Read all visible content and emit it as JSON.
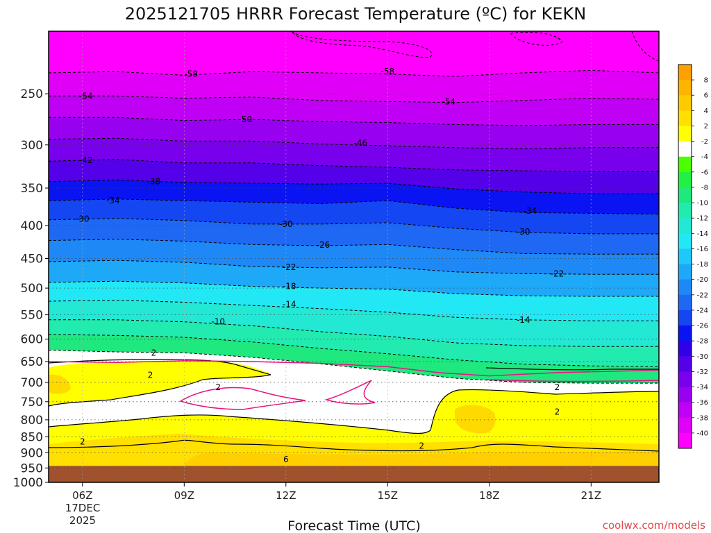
{
  "chart_data": {
    "type": "heatmap",
    "title": "2025121705 HRRR Forecast Temperature (ºC) for KEKN",
    "xlabel": "Forecast Time (UTC)",
    "x_ticks": [
      "06Z",
      "09Z",
      "12Z",
      "15Z",
      "18Z",
      "21Z"
    ],
    "x_ticks_hours": [
      6,
      9,
      12,
      15,
      18,
      21
    ],
    "xlim_hours": [
      5,
      23
    ],
    "date_label": [
      "17DEC",
      "2025"
    ],
    "yaxis": {
      "scale": "log",
      "inverted": true,
      "units": "hPa",
      "ylim": [
        1000,
        200
      ]
    },
    "y_ticks": [
      250,
      300,
      350,
      400,
      450,
      500,
      550,
      600,
      650,
      700,
      750,
      800,
      850,
      900,
      950,
      1000
    ],
    "ground_pressure_hPa": 943,
    "colorbar": {
      "labels": [
        "8",
        "6",
        "4",
        "2",
        "-2",
        "-4",
        "-6",
        "-8",
        "-10",
        "-12",
        "-14",
        "-16",
        "-18",
        "-20",
        "-22",
        "-24",
        "-26",
        "-28",
        "-30",
        "-32",
        "-34",
        "-36",
        "-38",
        "-40"
      ],
      "colors": [
        "#FFA000",
        "#FFB400",
        "#FFCB00",
        "#FFE000",
        "#FFFF00",
        "#FFFFFF",
        "#4BFF00",
        "#22F044",
        "#1EE87E",
        "#22EBAF",
        "#22E8D4",
        "#22E8F5",
        "#1EC8F8",
        "#1EA8F8",
        "#1E88F6",
        "#1E68F4",
        "#1446F2",
        "#0A14F2",
        "#3000E8",
        "#5400E8",
        "#7800EC",
        "#9800F0",
        "#C000F4",
        "#E000F8",
        "#FF00FF"
      ]
    },
    "temperature_contours": [
      {
        "label": "-58",
        "pressures": [
          232,
          231,
          234,
          231,
          232,
          233,
          235,
          232,
          230,
          232
        ]
      },
      {
        "label": "-54",
        "pressures": [
          252,
          252,
          254,
          253,
          256,
          257,
          258,
          256,
          254,
          255
        ]
      },
      {
        "label": "-50",
        "pressures": [
          272,
          272,
          275,
          274,
          276,
          277,
          279,
          280,
          279,
          279
        ]
      },
      {
        "label": "-46",
        "pressures": [
          294,
          293,
          296,
          296,
          299,
          301,
          303,
          304,
          303,
          303
        ]
      },
      {
        "label": "-42",
        "pressures": [
          318,
          316,
          320,
          320,
          323,
          325,
          328,
          329,
          330,
          330
        ]
      },
      {
        "label": "-38",
        "pressures": [
          342,
          340,
          343,
          344,
          345,
          344,
          351,
          355,
          357,
          357
        ]
      },
      {
        "label": "-34",
        "pressures": [
          366,
          364,
          366,
          368,
          370,
          366,
          376,
          382,
          383,
          384
        ]
      },
      {
        "label": "-30",
        "pressures": [
          392,
          390,
          393,
          398,
          398,
          396,
          404,
          410,
          412,
          412
        ]
      },
      {
        "label": "-26",
        "pressures": [
          422,
          420,
          423,
          428,
          430,
          428,
          436,
          442,
          443,
          443
        ]
      },
      {
        "label": "-22",
        "pressures": [
          455,
          453,
          456,
          463,
          465,
          464,
          472,
          475,
          476,
          476
        ]
      },
      {
        "label": "-18",
        "pressures": [
          490,
          488,
          491,
          497,
          500,
          502,
          510,
          514,
          515,
          515
        ]
      },
      {
        "label": "-14",
        "pressures": [
          524,
          522,
          526,
          532,
          538,
          545,
          555,
          560,
          562,
          562
        ]
      },
      {
        "label": "-10",
        "pressures": [
          560,
          560,
          564,
          572,
          584,
          594,
          608,
          614,
          616,
          616
        ]
      },
      {
        "label": "-6",
        "pressures": [
          590,
          592,
          596,
          606,
          620,
          632,
          646,
          656,
          660,
          662
        ]
      },
      {
        "label": "-2",
        "pressures": [
          624,
          628,
          630,
          640,
          655,
          672,
          690,
          700,
          702,
          702
        ]
      }
    ],
    "contour_labels": [
      {
        "text": "-58",
        "hour": 9.2,
        "p": 233
      },
      {
        "text": "-58",
        "hour": 15.0,
        "p": 231
      },
      {
        "text": "-54",
        "hour": 6.1,
        "p": 252
      },
      {
        "text": "-54",
        "hour": 16.8,
        "p": 257
      },
      {
        "text": "-50",
        "hour": 10.8,
        "p": 274
      },
      {
        "text": "-46",
        "hour": 14.2,
        "p": 298
      },
      {
        "text": "-42",
        "hour": 6.1,
        "p": 317
      },
      {
        "text": "-38",
        "hour": 8.1,
        "p": 342
      },
      {
        "text": "-34",
        "hour": 6.9,
        "p": 366
      },
      {
        "text": "-34",
        "hour": 19.2,
        "p": 380
      },
      {
        "text": "-30",
        "hour": 6.0,
        "p": 391
      },
      {
        "text": "-30",
        "hour": 12.0,
        "p": 398
      },
      {
        "text": "-30",
        "hour": 19.0,
        "p": 409
      },
      {
        "text": "-26",
        "hour": 13.1,
        "p": 429
      },
      {
        "text": "-22",
        "hour": 12.1,
        "p": 464
      },
      {
        "text": "-22",
        "hour": 20.0,
        "p": 475
      },
      {
        "text": "-18",
        "hour": 12.1,
        "p": 497
      },
      {
        "text": "-14",
        "hour": 12.1,
        "p": 530
      },
      {
        "text": "-14",
        "hour": 19.0,
        "p": 560
      },
      {
        "text": "-10",
        "hour": 10.0,
        "p": 564
      },
      {
        "text": "2",
        "hour": 8.1,
        "p": 630
      },
      {
        "text": "2",
        "hour": 8.0,
        "p": 682
      },
      {
        "text": "2",
        "hour": 10.0,
        "p": 712
      },
      {
        "text": "2",
        "hour": 20.0,
        "p": 712
      },
      {
        "text": "2",
        "hour": 20.0,
        "p": 778
      },
      {
        "text": "2",
        "hour": 6.0,
        "p": 865
      },
      {
        "text": "2",
        "hour": 16.0,
        "p": 878
      },
      {
        "text": "6",
        "hour": 12.0,
        "p": 922
      }
    ],
    "zero_degree_line": {
      "hours": [
        5,
        7,
        9,
        11,
        13,
        15,
        16.5,
        18,
        20,
        22,
        23
      ],
      "pressures": [
        650,
        652,
        648,
        650,
        654,
        662,
        676,
        684,
        676,
        672,
        670
      ]
    },
    "credit": "coolwx.com/models"
  }
}
